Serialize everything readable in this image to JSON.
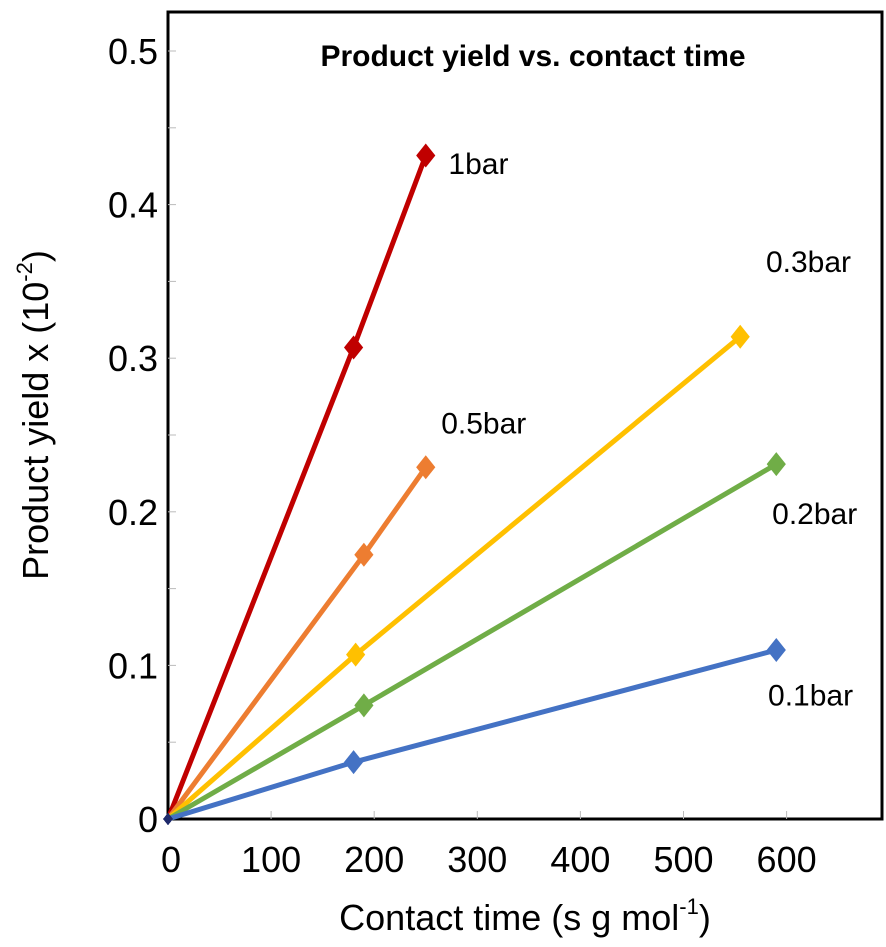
{
  "chart_data": {
    "type": "line",
    "title": "Product yield  vs. contact time",
    "xlabel": {
      "main": "Contact time (s g mol",
      "sup": "-1",
      "close": ")"
    },
    "ylabel": {
      "main": "Product yield x (10",
      "sup": "-2",
      "close": ")"
    },
    "xlim": [
      0,
      690
    ],
    "ylim": [
      0,
      0.53
    ],
    "x_ticks": [
      {
        "value": 0,
        "label": "0"
      },
      {
        "value": 100,
        "label": "100"
      },
      {
        "value": 200,
        "label": "200"
      },
      {
        "value": 300,
        "label": "300"
      },
      {
        "value": 400,
        "label": "400"
      },
      {
        "value": 500,
        "label": "500"
      },
      {
        "value": 600,
        "label": "600"
      }
    ],
    "y_ticks": [
      {
        "value": 0,
        "label": "0"
      },
      {
        "value": 0.1,
        "label": "0.1"
      },
      {
        "value": 0.2,
        "label": "0.2"
      },
      {
        "value": 0.3,
        "label": "0.3"
      },
      {
        "value": 0.4,
        "label": "0.4"
      },
      {
        "value": 0.5,
        "label": "0.5"
      }
    ],
    "grid": false,
    "legend": "none",
    "series": [
      {
        "name": "1bar",
        "color": "#C00000",
        "points": [
          [
            0,
            0
          ],
          [
            180,
            0.307
          ],
          [
            250,
            0.432
          ]
        ],
        "label_at": [
          272,
          0.42
        ]
      },
      {
        "name": "0.5bar",
        "color": "#ED7D31",
        "points": [
          [
            0,
            0
          ],
          [
            190,
            0.172
          ],
          [
            250,
            0.229
          ]
        ],
        "label_at": [
          265,
          0.251
        ]
      },
      {
        "name": "0.3bar",
        "color": "#FFC000",
        "points": [
          [
            0,
            0
          ],
          [
            182,
            0.107
          ],
          [
            555,
            0.314
          ]
        ],
        "label_at": [
          580,
          0.356
        ]
      },
      {
        "name": "0.2bar",
        "color": "#70AD47",
        "points": [
          [
            0,
            0
          ],
          [
            190,
            0.074
          ],
          [
            590,
            0.231
          ]
        ],
        "label_at": [
          586,
          0.192
        ]
      },
      {
        "name": "0.1bar",
        "color": "#4472C4",
        "points": [
          [
            0,
            0
          ],
          [
            180,
            0.037
          ],
          [
            590,
            0.11
          ]
        ],
        "label_at": [
          582,
          0.074
        ]
      }
    ]
  }
}
